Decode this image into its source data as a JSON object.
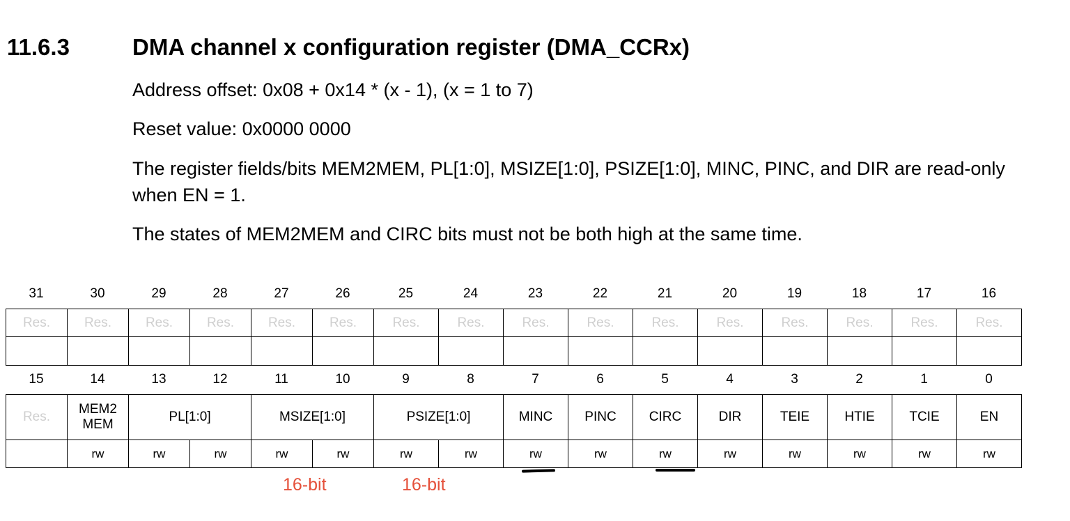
{
  "section": {
    "number": "11.6.3",
    "title": "DMA channel x configuration register (DMA_CCRx)"
  },
  "paragraphs": {
    "address_offset": "Address offset: 0x08 + 0x14 * (x - 1), (x = 1 to 7)",
    "reset_value": "Reset value: 0x0000 0000",
    "read_only_note": "The register fields/bits MEM2MEM, PL[1:0], MSIZE[1:0], PSIZE[1:0], MINC, PINC, and DIR are read-only when EN = 1.",
    "states_note": "The states of MEM2MEM and CIRC bits must not be both high at the same time."
  },
  "register": {
    "upper": {
      "bit_numbers": [
        "31",
        "30",
        "29",
        "28",
        "27",
        "26",
        "25",
        "24",
        "23",
        "22",
        "21",
        "20",
        "19",
        "18",
        "17",
        "16"
      ],
      "fields": [
        {
          "name": "Res.",
          "span": 1,
          "reserved": true
        },
        {
          "name": "Res.",
          "span": 1,
          "reserved": true
        },
        {
          "name": "Res.",
          "span": 1,
          "reserved": true
        },
        {
          "name": "Res.",
          "span": 1,
          "reserved": true
        },
        {
          "name": "Res.",
          "span": 1,
          "reserved": true
        },
        {
          "name": "Res.",
          "span": 1,
          "reserved": true
        },
        {
          "name": "Res.",
          "span": 1,
          "reserved": true
        },
        {
          "name": "Res.",
          "span": 1,
          "reserved": true
        },
        {
          "name": "Res.",
          "span": 1,
          "reserved": true
        },
        {
          "name": "Res.",
          "span": 1,
          "reserved": true
        },
        {
          "name": "Res.",
          "span": 1,
          "reserved": true
        },
        {
          "name": "Res.",
          "span": 1,
          "reserved": true
        },
        {
          "name": "Res.",
          "span": 1,
          "reserved": true
        },
        {
          "name": "Res.",
          "span": 1,
          "reserved": true
        },
        {
          "name": "Res.",
          "span": 1,
          "reserved": true
        },
        {
          "name": "Res.",
          "span": 1,
          "reserved": true
        }
      ],
      "access": [
        "",
        "",
        "",
        "",
        "",
        "",
        "",
        "",
        "",
        "",
        "",
        "",
        "",
        "",
        "",
        ""
      ]
    },
    "lower": {
      "bit_numbers": [
        "15",
        "14",
        "13",
        "12",
        "11",
        "10",
        "9",
        "8",
        "7",
        "6",
        "5",
        "4",
        "3",
        "2",
        "1",
        "0"
      ],
      "fields": [
        {
          "name": "Res.",
          "span": 1,
          "reserved": true
        },
        {
          "name": "MEM2\nMEM",
          "span": 1,
          "reserved": false
        },
        {
          "name": "PL[1:0]",
          "span": 2,
          "reserved": false
        },
        {
          "name": "MSIZE[1:0]",
          "span": 2,
          "reserved": false
        },
        {
          "name": "PSIZE[1:0]",
          "span": 2,
          "reserved": false
        },
        {
          "name": "MINC",
          "span": 1,
          "reserved": false
        },
        {
          "name": "PINC",
          "span": 1,
          "reserved": false
        },
        {
          "name": "CIRC",
          "span": 1,
          "reserved": false
        },
        {
          "name": "DIR",
          "span": 1,
          "reserved": false
        },
        {
          "name": "TEIE",
          "span": 1,
          "reserved": false
        },
        {
          "name": "HTIE",
          "span": 1,
          "reserved": false
        },
        {
          "name": "TCIE",
          "span": 1,
          "reserved": false
        },
        {
          "name": "EN",
          "span": 1,
          "reserved": false
        }
      ],
      "access": [
        "",
        "rw",
        "rw",
        "rw",
        "rw",
        "rw",
        "rw",
        "rw",
        "rw",
        "rw",
        "rw",
        "rw",
        "rw",
        "rw",
        "rw",
        "rw"
      ]
    }
  },
  "annotations": {
    "msize_note": "16-bit",
    "psize_note": "16-bit"
  }
}
